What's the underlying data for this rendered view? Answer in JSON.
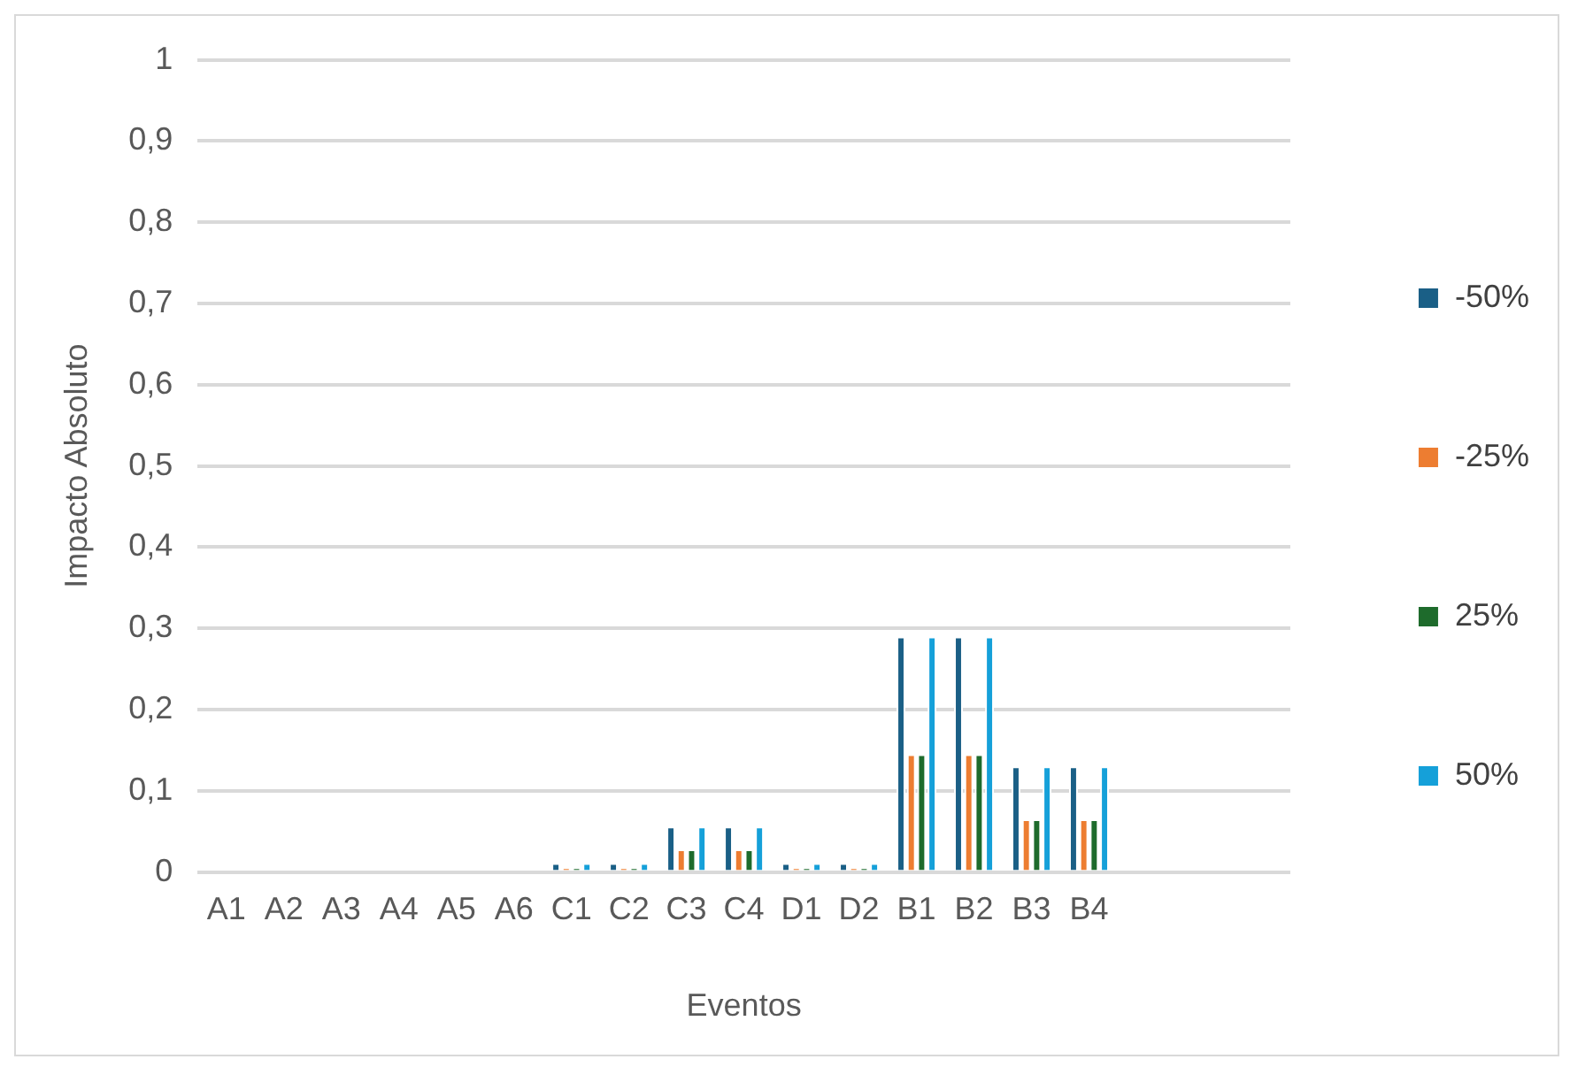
{
  "chart_data": {
    "type": "bar",
    "xlabel": "Eventos",
    "ylabel": "Impacto Absoluto",
    "categories": [
      "A1",
      "A2",
      "A3",
      "A4",
      "A5",
      "A6",
      "C1",
      "C2",
      "C3",
      "C4",
      "D1",
      "D2",
      "B1",
      "B2",
      "B3",
      "B4",
      null,
      null,
      null
    ],
    "series": [
      {
        "name": "-50%",
        "color": "#1a5f86",
        "values": [
          0,
          0,
          0,
          0,
          0,
          0,
          0.011,
          0.011,
          0.056,
          0.056,
          0.011,
          0.011,
          0.29,
          0.29,
          0.13,
          0.13,
          null,
          null,
          null
        ]
      },
      {
        "name": "-25%",
        "color": "#ed7d31",
        "values": [
          0,
          0,
          0,
          0,
          0,
          0,
          0.005,
          0.005,
          0.028,
          0.028,
          0.005,
          0.005,
          0.145,
          0.145,
          0.065,
          0.065,
          null,
          null,
          null
        ]
      },
      {
        "name": "25%",
        "color": "#1e6b2c",
        "values": [
          0,
          0,
          0,
          0,
          0,
          0,
          0.005,
          0.005,
          0.028,
          0.028,
          0.005,
          0.005,
          0.145,
          0.145,
          0.065,
          0.065,
          null,
          null,
          null
        ]
      },
      {
        "name": "50%",
        "color": "#15a0d9",
        "values": [
          0,
          0,
          0,
          0,
          0,
          0,
          0.011,
          0.011,
          0.056,
          0.056,
          0.011,
          0.011,
          0.29,
          0.29,
          0.13,
          0.13,
          null,
          null,
          null
        ]
      }
    ],
    "ylim": [
      0,
      1
    ],
    "yticks": [
      0,
      {
        "value": 0.1,
        "label": "0,1"
      },
      {
        "value": 0.2,
        "label": "0,2"
      },
      {
        "value": 0.3,
        "label": "0,3"
      },
      {
        "value": 0.4,
        "label": "0,4"
      },
      {
        "value": 0.5,
        "label": "0,5"
      },
      {
        "value": 0.6,
        "label": "0,6"
      },
      {
        "value": 0.7,
        "label": "0,7"
      },
      {
        "value": 0.8,
        "label": "0,8"
      },
      {
        "value": 0.9,
        "label": "0,9"
      },
      1
    ],
    "grid": "y",
    "legend": "right"
  }
}
